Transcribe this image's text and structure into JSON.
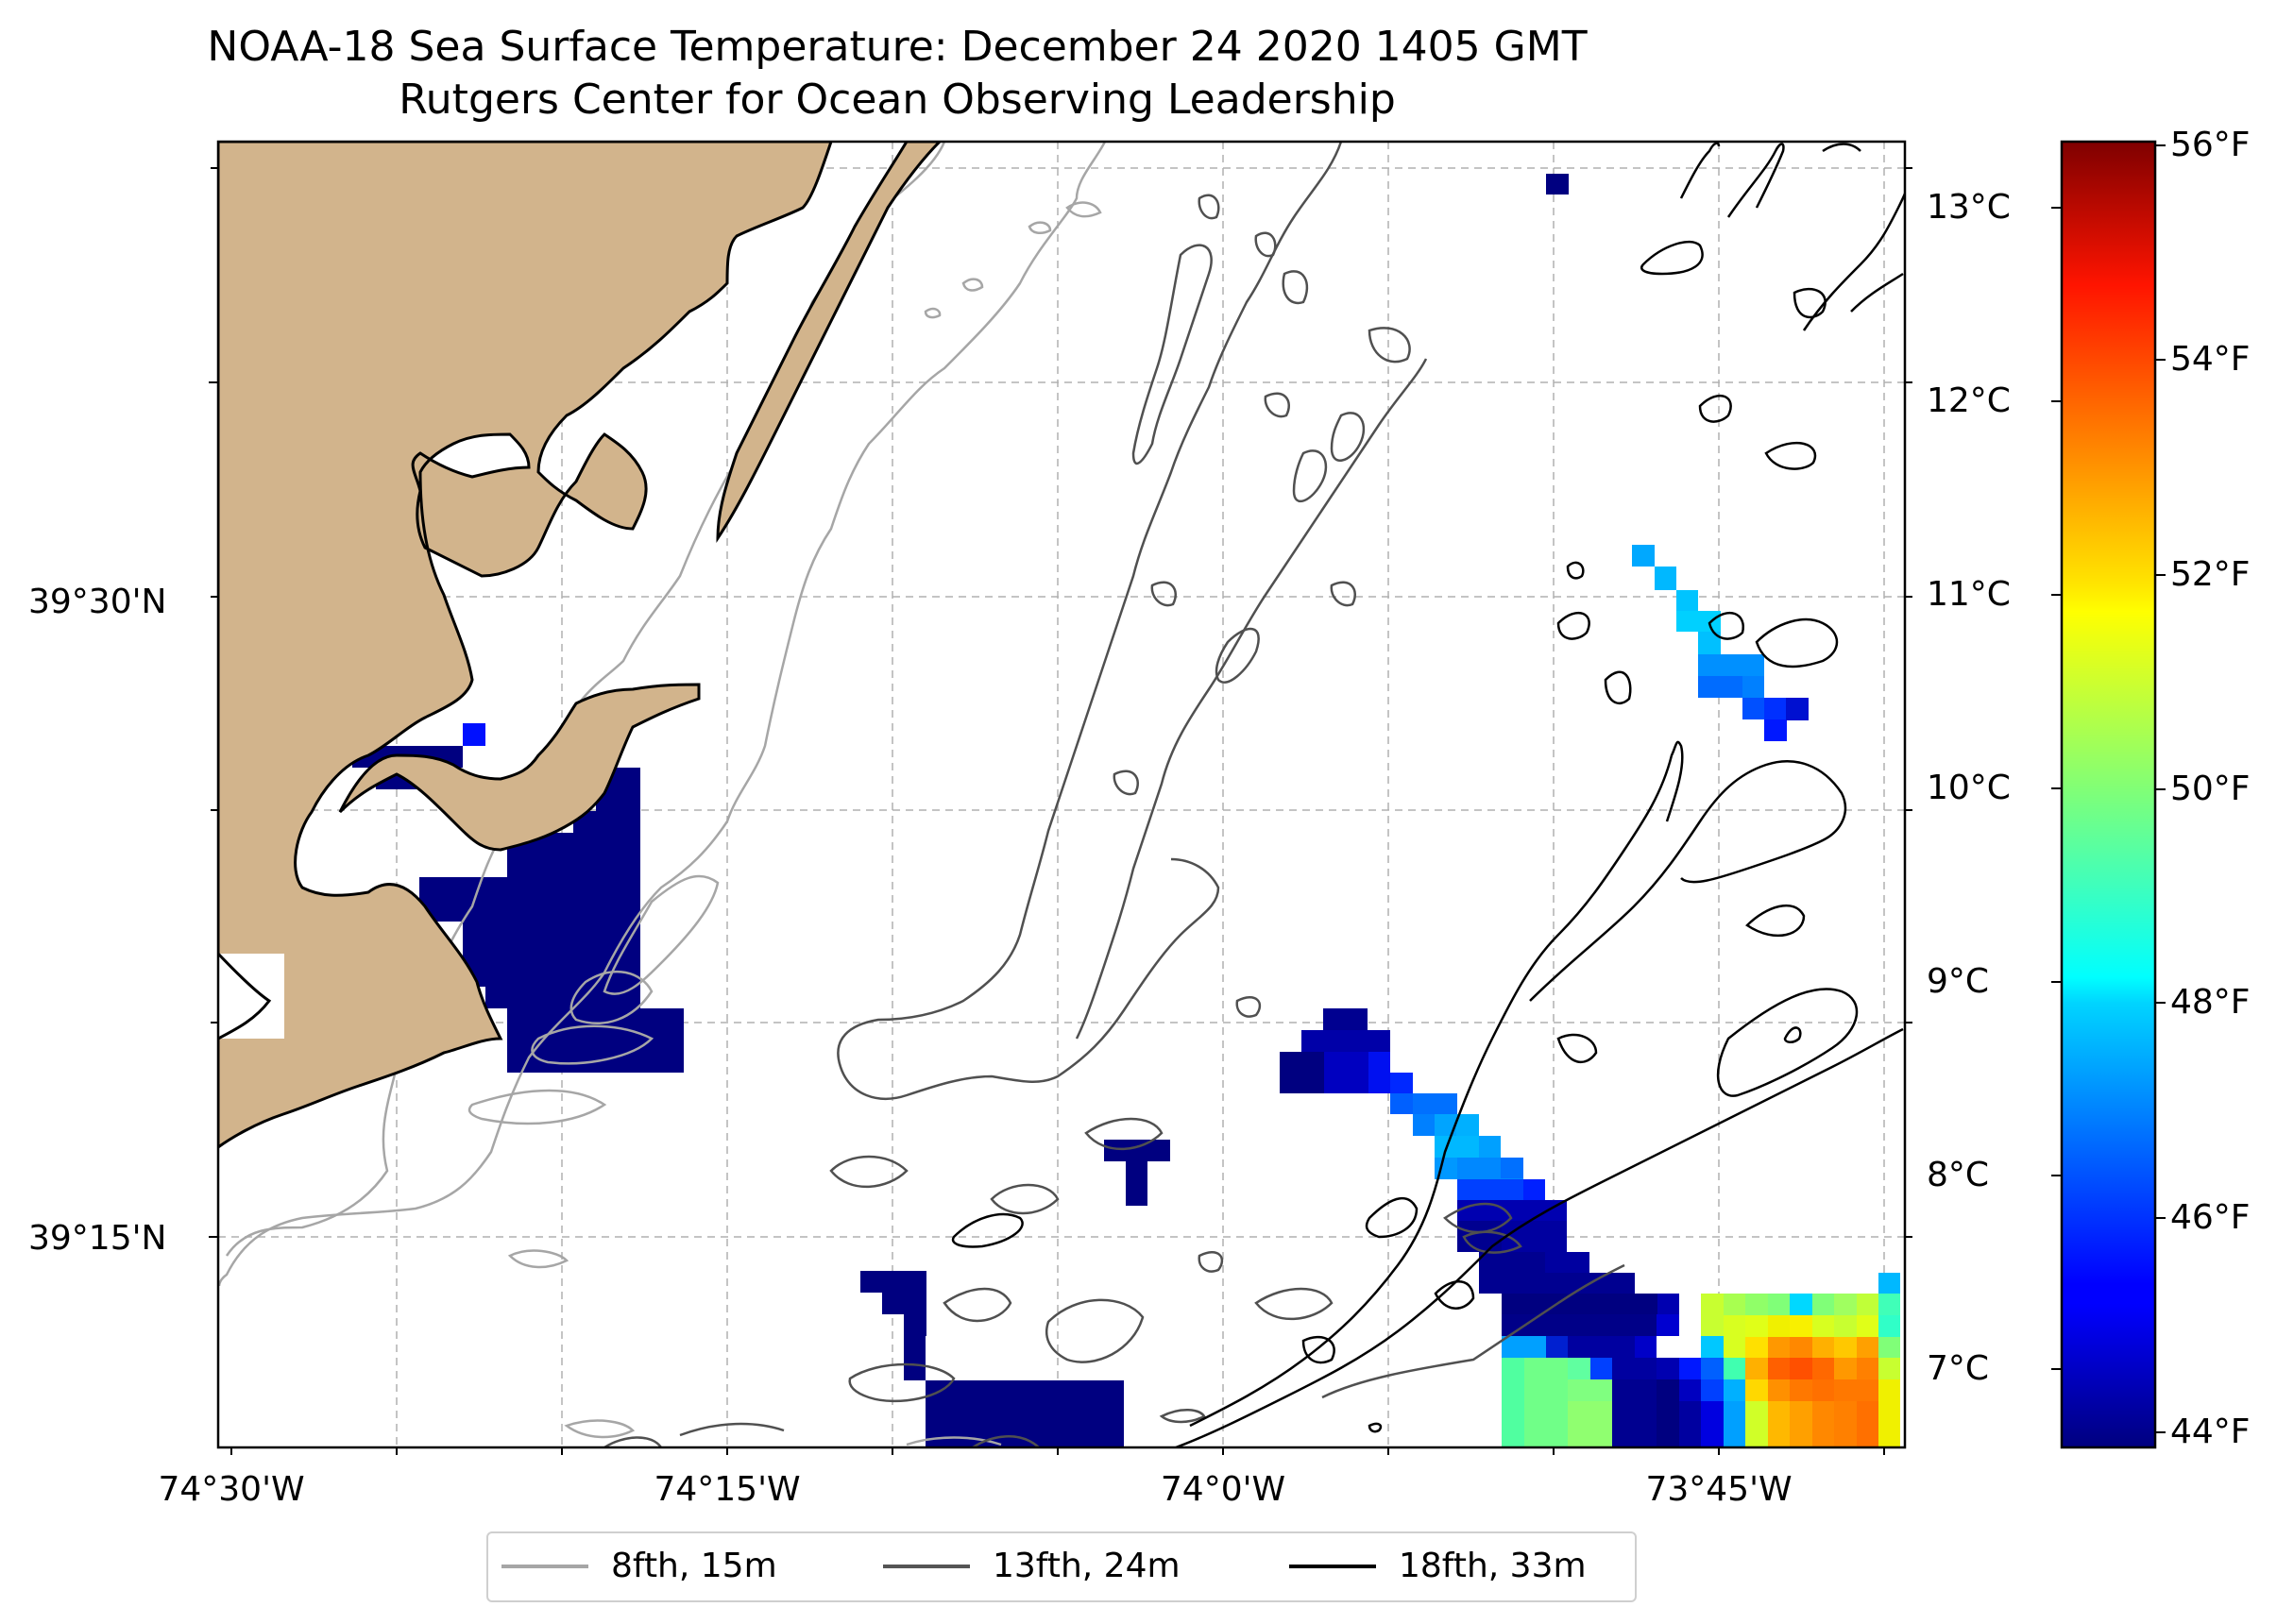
{
  "title_line1": "NOAA-18 Sea Surface Temperature: December 24 2020 1405 GMT",
  "title_line2": "Rutgers Center for Ocean Observing Leadership",
  "lat_labels": [
    "39°30'N",
    "39°15'N"
  ],
  "lon_labels": [
    "74°30'W",
    "74°15'W",
    "74°0'W",
    "73°45'W"
  ],
  "colorbar": {
    "celsius_ticks": [
      "13°C",
      "12°C",
      "11°C",
      "10°C",
      "9°C",
      "8°C",
      "7°C"
    ],
    "fahrenheit_ticks": [
      "56°F",
      "54°F",
      "52°F",
      "50°F",
      "48°F",
      "46°F",
      "44°F"
    ],
    "colormap": "jet",
    "range_celsius": [
      6.6,
      13.4
    ]
  },
  "legend": {
    "items": [
      {
        "label": "8fth, 15m",
        "color": "#a6a6a6"
      },
      {
        "label": "13fth, 24m",
        "color": "#555555"
      },
      {
        "label": "18fth, 33m",
        "color": "#000000"
      }
    ]
  },
  "colors": {
    "land": "#d2b48c",
    "gridline": "#b0b0b0"
  }
}
